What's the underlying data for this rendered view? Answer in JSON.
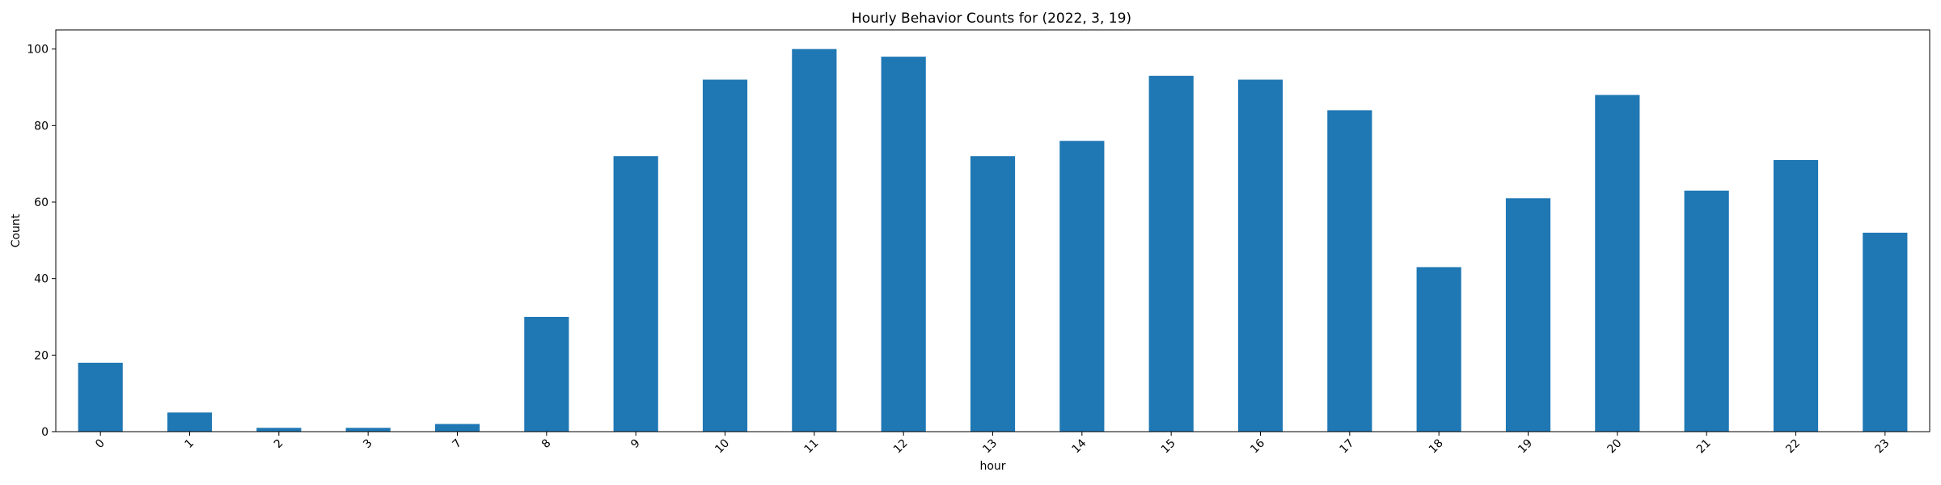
{
  "chart_data": {
    "type": "bar",
    "title": "Hourly Behavior Counts for (2022, 3, 19)",
    "xlabel": "hour",
    "ylabel": "Count",
    "categories": [
      "0",
      "1",
      "2",
      "3",
      "7",
      "8",
      "9",
      "10",
      "11",
      "12",
      "13",
      "14",
      "15",
      "16",
      "17",
      "18",
      "19",
      "20",
      "21",
      "22",
      "23"
    ],
    "values": [
      18,
      5,
      1,
      1,
      2,
      30,
      72,
      92,
      100,
      98,
      72,
      76,
      93,
      92,
      84,
      43,
      61,
      88,
      63,
      71,
      52
    ],
    "ylim": [
      0,
      105
    ],
    "yticks": [
      0,
      20,
      40,
      60,
      80,
      100
    ],
    "grid": false,
    "legend": "none",
    "bar_color": "#1f77b4"
  }
}
